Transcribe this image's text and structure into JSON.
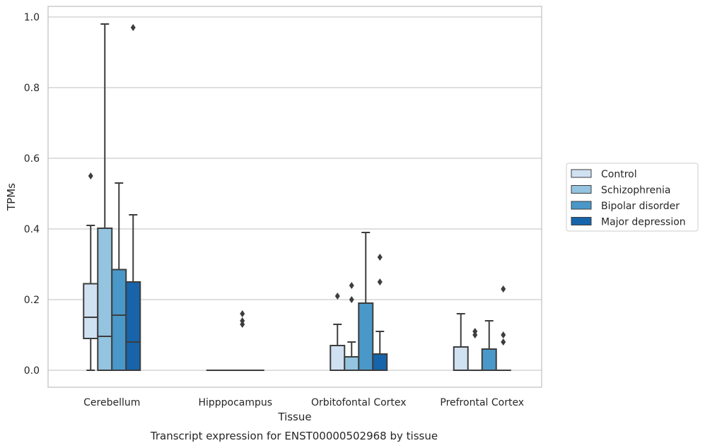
{
  "chart_data": {
    "type": "box",
    "title": "",
    "caption": "Transcript expression for ENST00000502968 by tissue",
    "xlabel": "Tissue",
    "ylabel": "TPMs",
    "ylim": [
      -0.048,
      1.03
    ],
    "yticks": [
      0.0,
      0.2,
      0.4,
      0.6,
      0.8,
      1.0
    ],
    "ytick_labels": [
      "0.0",
      "0.2",
      "0.4",
      "0.6",
      "0.8",
      "1.0"
    ],
    "grid": "horizontal",
    "legend_position": "right",
    "categories": [
      "Cerebellum",
      "Hipppocampus",
      "Orbitofontal Cortex",
      "Prefrontal Cortex"
    ],
    "series": [
      {
        "name": "Control",
        "color": "#d0e1f2",
        "boxes": [
          {
            "whislo": 0.0,
            "q1": 0.09,
            "med": 0.15,
            "q3": 0.245,
            "whishi": 0.41,
            "fliers": [
              0.55
            ]
          },
          {
            "whislo": 0.0,
            "q1": 0.0,
            "med": 0.0,
            "q3": 0.0,
            "whishi": 0.0,
            "fliers": []
          },
          {
            "whislo": 0.0,
            "q1": 0.0,
            "med": 0.0,
            "q3": 0.07,
            "whishi": 0.13,
            "fliers": [
              0.21
            ]
          },
          {
            "whislo": 0.0,
            "q1": 0.0,
            "med": 0.0,
            "q3": 0.066,
            "whishi": 0.16,
            "fliers": []
          }
        ]
      },
      {
        "name": "Schizophrenia",
        "color": "#94c4df",
        "boxes": [
          {
            "whislo": 0.0,
            "q1": 0.0,
            "med": 0.096,
            "q3": 0.402,
            "whishi": 0.98,
            "fliers": []
          },
          {
            "whislo": 0.0,
            "q1": 0.0,
            "med": 0.0,
            "q3": 0.0,
            "whishi": 0.0,
            "fliers": []
          },
          {
            "whislo": 0.0,
            "q1": 0.0,
            "med": 0.0,
            "q3": 0.038,
            "whishi": 0.08,
            "fliers": [
              0.2,
              0.24
            ]
          },
          {
            "whislo": 0.0,
            "q1": 0.0,
            "med": 0.0,
            "q3": 0.0,
            "whishi": 0.0,
            "fliers": [
              0.1,
              0.11
            ]
          }
        ]
      },
      {
        "name": "Bipolar disorder",
        "color": "#4a98c9",
        "boxes": [
          {
            "whislo": 0.0,
            "q1": 0.0,
            "med": 0.156,
            "q3": 0.285,
            "whishi": 0.53,
            "fliers": []
          },
          {
            "whislo": 0.0,
            "q1": 0.0,
            "med": 0.0,
            "q3": 0.0,
            "whishi": 0.0,
            "fliers": [
              0.13,
              0.14,
              0.16
            ]
          },
          {
            "whislo": 0.0,
            "q1": 0.0,
            "med": 0.0,
            "q3": 0.19,
            "whishi": 0.39,
            "fliers": []
          },
          {
            "whislo": 0.0,
            "q1": 0.0,
            "med": 0.0,
            "q3": 0.06,
            "whishi": 0.14,
            "fliers": []
          }
        ]
      },
      {
        "name": "Major depression",
        "color": "#1764ab",
        "boxes": [
          {
            "whislo": 0.0,
            "q1": 0.0,
            "med": 0.08,
            "q3": 0.25,
            "whishi": 0.44,
            "fliers": [
              0.97
            ]
          },
          {
            "whislo": 0.0,
            "q1": 0.0,
            "med": 0.0,
            "q3": 0.0,
            "whishi": 0.0,
            "fliers": []
          },
          {
            "whislo": 0.0,
            "q1": 0.0,
            "med": 0.0,
            "q3": 0.046,
            "whishi": 0.11,
            "fliers": [
              0.25,
              0.32
            ]
          },
          {
            "whislo": 0.0,
            "q1": 0.0,
            "med": 0.0,
            "q3": 0.0,
            "whishi": 0.0,
            "fliers": [
              0.08,
              0.1,
              0.23
            ]
          }
        ]
      }
    ]
  }
}
